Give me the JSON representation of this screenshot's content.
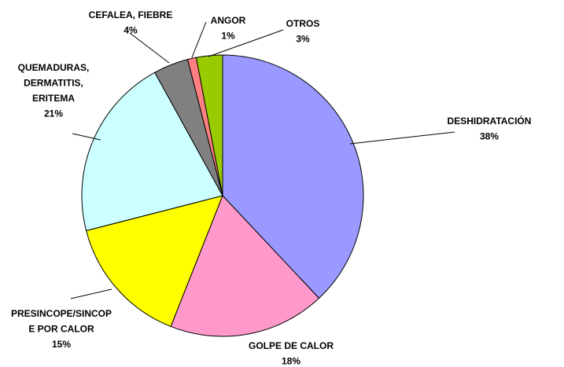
{
  "chart_data": {
    "type": "pie",
    "categories": [
      "DESHIDRATACIÓN",
      "GOLPE DE CALOR",
      "PRESINCOPE/SINCOP\nE POR CALOR",
      "QUEMADURAS,\nDERMATITIS,\nERITEMA",
      "CEFALEA, FIEBRE",
      "ANGOR",
      "OTROS"
    ],
    "values": [
      38,
      18,
      15,
      21,
      4,
      1,
      3
    ],
    "value_labels": [
      "38%",
      "18%",
      "15%",
      "21%",
      "4%",
      "1%",
      "3%"
    ],
    "colors": [
      "#9999ff",
      "#ff99cc",
      "#ffff00",
      "#ccffff",
      "#808080",
      "#ff8080",
      "#99cc00"
    ]
  }
}
